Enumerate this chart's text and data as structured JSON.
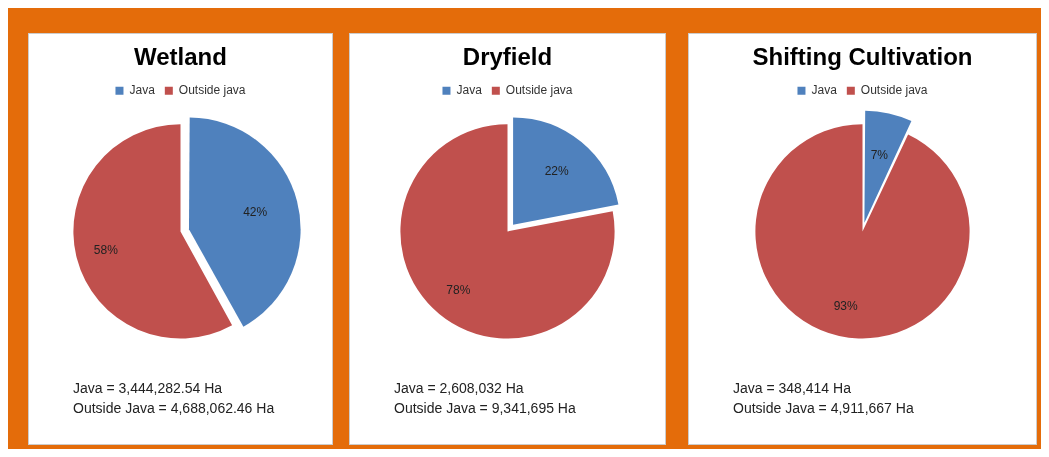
{
  "chart_data": [
    {
      "type": "pie",
      "title": "Wetland",
      "categories": [
        "Java",
        "Outside java"
      ],
      "values": [
        42,
        58
      ],
      "colors": [
        "#4f81bd",
        "#c0504d"
      ],
      "value_labels": [
        "42%",
        "58%"
      ],
      "legend": "top",
      "annotations": [
        "Java = 3,444,282.54 Ha",
        "Outside Java = 4,688,062.46 Ha"
      ]
    },
    {
      "type": "pie",
      "title": "Dryfield",
      "categories": [
        "Java",
        "Outside java"
      ],
      "values": [
        22,
        78
      ],
      "colors": [
        "#4f81bd",
        "#c0504d"
      ],
      "value_labels": [
        "22%",
        "78%"
      ],
      "legend": "top",
      "annotations": [
        "Java = 2,608,032 Ha",
        "Outside Java = 9,341,695 Ha"
      ]
    },
    {
      "type": "pie",
      "title": "Shifting Cultivation",
      "categories": [
        "Java",
        "Outside java"
      ],
      "values": [
        7,
        93
      ],
      "colors": [
        "#4f81bd",
        "#c0504d"
      ],
      "value_labels": [
        "7%",
        "93%"
      ],
      "legend": "top",
      "annotations": [
        "Java = 348,414 Ha",
        "Outside Java = 4,911,667 Ha"
      ]
    }
  ]
}
